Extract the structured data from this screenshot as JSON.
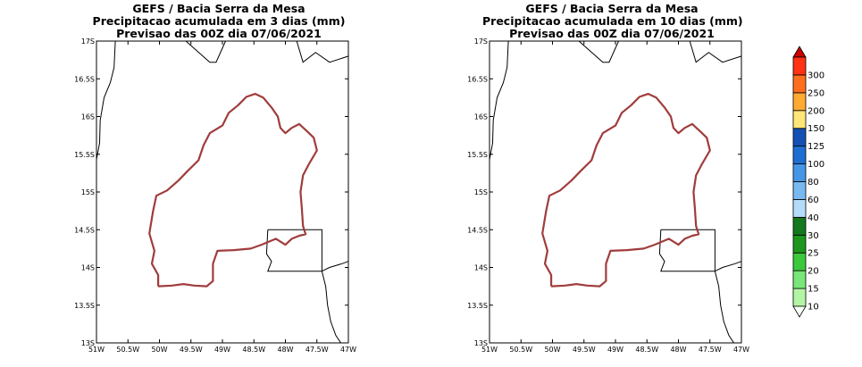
{
  "maps": [
    {
      "title_lines": [
        "GEFS / Bacia Serra da Mesa",
        "Precipitacao acumulada em 3 dias (mm)",
        "Previsao das 00Z dia 07/06/2021"
      ]
    },
    {
      "title_lines": [
        "GEFS / Bacia Serra da Mesa",
        "Precipitacao acumulada em 10 dias (mm)",
        "Previsao das 00Z dia 07/06/2021"
      ]
    }
  ],
  "axes": {
    "lon_labels": [
      "51W",
      "50.5W",
      "50W",
      "49.5W",
      "49W",
      "48.5W",
      "48W",
      "47.5W",
      "47W"
    ],
    "lat_labels": [
      "13S",
      "13.5S",
      "14S",
      "14.5S",
      "15S",
      "15.5S",
      "16S",
      "16.5S",
      "17S"
    ],
    "lon_range": [
      -51,
      -47
    ],
    "lat_range": [
      -17,
      -13
    ]
  },
  "colorbar": {
    "levels": [
      "10",
      "15",
      "20",
      "25",
      "30",
      "40",
      "60",
      "80",
      "100",
      "125",
      "150",
      "200",
      "250",
      "300"
    ],
    "colors": [
      "#f5fff5",
      "#b4f5a5",
      "#78e678",
      "#3cc83c",
      "#1e961e",
      "#14781e",
      "#b4dcfa",
      "#78b9f0",
      "#4696e6",
      "#1e6ed2",
      "#1450b4",
      "#ffe678",
      "#ffaa32",
      "#ff6e1e",
      "#ff3214",
      "#c80000"
    ]
  },
  "colors": {
    "basin_outline": "#a03c3c",
    "borders": "#000000"
  }
}
